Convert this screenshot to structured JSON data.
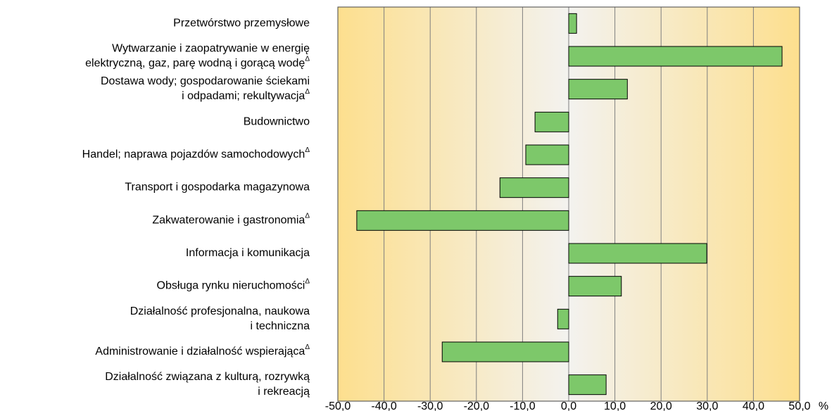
{
  "chart_data": {
    "type": "bar",
    "orientation": "horizontal",
    "categories": [
      "Przetwórstwo przemysłowe",
      "Wytwarzanie i zaopatrywanie w energię\nelektryczną, gaz, parę wodną i gorącą wodęΔ",
      "Dostawa wody; gospodarowanie ściekami\ni odpadami; rekultywacjaΔ",
      "Budownictwo",
      "Handel; naprawa pojazdów samochodowychΔ",
      "Transport i gospodarka magazynowa",
      "Zakwaterowanie i gastronomiaΔ",
      "Informacja i komunikacja",
      "Obsługa rynku nieruchomościΔ",
      "Działalność profesjonalna, naukowa\ni techniczna",
      "Administrowanie i działalność wspierającaΔ",
      "Działalność związana z kulturą, rozrywką\ni rekreacją"
    ],
    "values": [
      1.7,
      46.2,
      12.7,
      -7.3,
      -9.3,
      -14.9,
      -45.9,
      29.9,
      11.4,
      -2.4,
      -27.4,
      8.1
    ],
    "color": "#7dc86a",
    "xlim": [
      -50,
      50
    ],
    "xticks": [
      {
        "value": -50,
        "label": "-50,0"
      },
      {
        "value": -40,
        "label": "-40,0"
      },
      {
        "value": -30,
        "label": "-30,0"
      },
      {
        "value": -20,
        "label": "-20,0"
      },
      {
        "value": -10,
        "label": "-10,0"
      },
      {
        "value": 0,
        "label": "0,0"
      },
      {
        "value": 10,
        "label": "10,0"
      },
      {
        "value": 20,
        "label": "20,0"
      },
      {
        "value": 30,
        "label": "30,0"
      },
      {
        "value": 40,
        "label": "40,0"
      },
      {
        "value": 50,
        "label": "50,0"
      }
    ],
    "x_unit": "%",
    "grid": true
  }
}
